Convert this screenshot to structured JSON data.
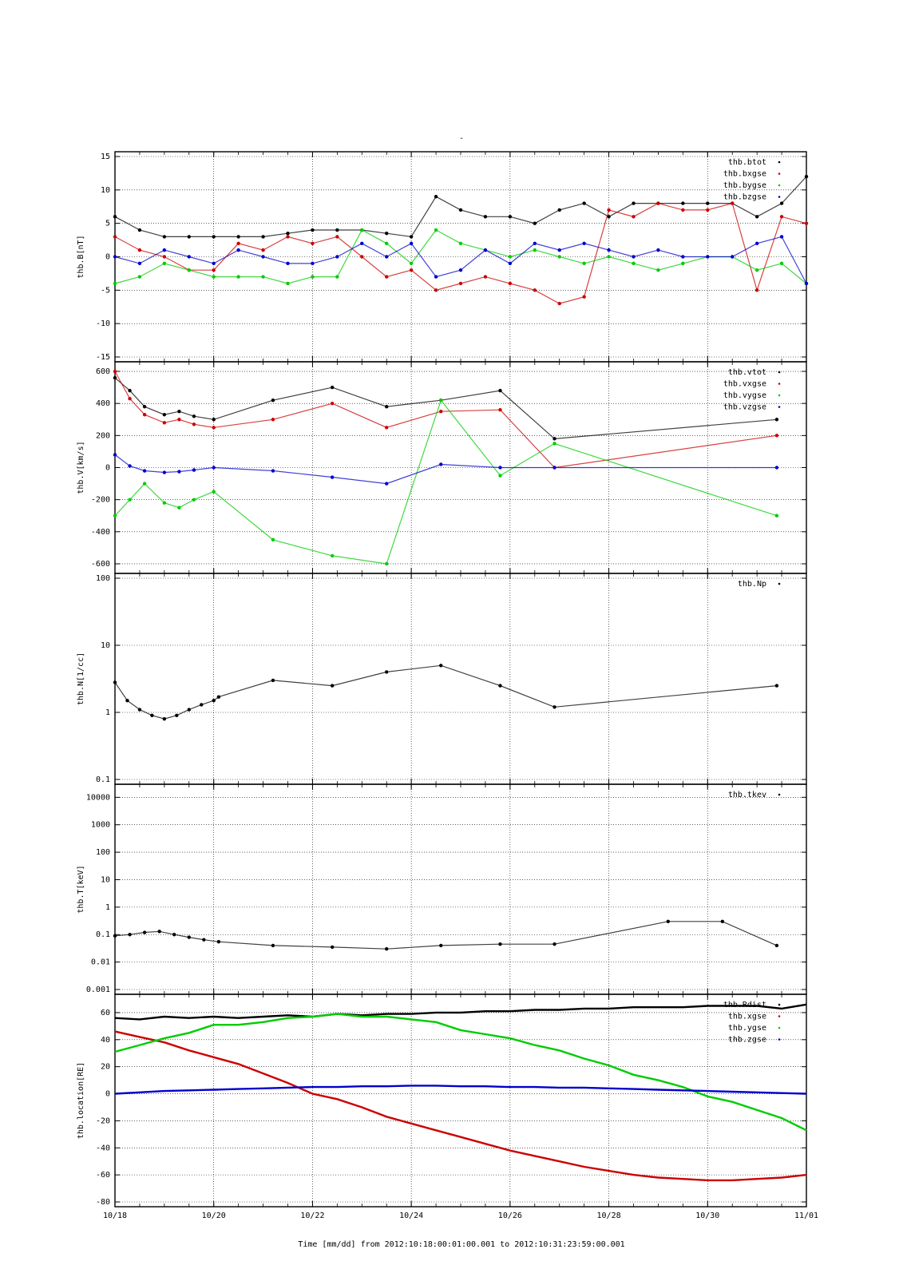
{
  "title": "-",
  "colors": {
    "black": "#000000",
    "red": "#cc0000",
    "green": "#00cc00",
    "blue": "#0000cc",
    "grid": "#000000"
  },
  "xaxis": {
    "ticks": [
      "10/18",
      "10/20",
      "10/22",
      "10/24",
      "10/26",
      "10/28",
      "10/30",
      "11/01"
    ],
    "label": "Time [mm/dd]  from 2012:10:18:00:01:00.001  to  2012:10:31:23:59:00.001",
    "range_days": [
      18,
      32
    ]
  },
  "chart_data": [
    {
      "type": "scatter",
      "ylabel": "thb.B[nT]",
      "scale": "linear",
      "ylim": [
        -15,
        15
      ],
      "yticks": [
        "15",
        "10",
        "5",
        "0",
        "-5",
        "-10",
        "-15"
      ],
      "legend": [
        "thb.btot",
        "thb.bxgse",
        "thb.bygse",
        "thb.bzgse"
      ],
      "series": [
        {
          "name": "thb.btot",
          "color": "black",
          "x": [
            18,
            18.5,
            19,
            19.5,
            20,
            20.5,
            21,
            21.5,
            22,
            22.5,
            23,
            23.5,
            24,
            24.5,
            25,
            25.5,
            26,
            26.5,
            27,
            27.5,
            28,
            28.5,
            29,
            29.5,
            30,
            30.5,
            31,
            31.5,
            32
          ],
          "y": [
            6,
            4,
            3,
            3,
            3,
            3,
            3,
            3.5,
            4,
            4,
            4,
            3.5,
            3,
            9,
            7,
            6,
            6,
            5,
            7,
            8,
            6,
            8,
            8,
            8,
            8,
            8,
            6,
            8,
            12
          ]
        },
        {
          "name": "thb.bxgse",
          "color": "red",
          "x": [
            18,
            18.5,
            19,
            19.5,
            20,
            20.5,
            21,
            21.5,
            22,
            22.5,
            23,
            23.5,
            24,
            24.5,
            25,
            25.5,
            26,
            26.5,
            27,
            27.5,
            28,
            28.5,
            29,
            29.5,
            30,
            30.5,
            31,
            31.5,
            32
          ],
          "y": [
            3,
            1,
            0,
            -2,
            -2,
            2,
            1,
            3,
            2,
            3,
            0,
            -3,
            -2,
            -5,
            -4,
            -3,
            -4,
            -5,
            -7,
            -6,
            7,
            6,
            8,
            7,
            7,
            8,
            -5,
            6,
            5
          ]
        },
        {
          "name": "thb.bygse",
          "color": "green",
          "x": [
            18,
            18.5,
            19,
            19.5,
            20,
            20.5,
            21,
            21.5,
            22,
            22.5,
            23,
            23.5,
            24,
            24.5,
            25,
            25.5,
            26,
            26.5,
            27,
            27.5,
            28,
            28.5,
            29,
            29.5,
            30,
            30.5,
            31,
            31.5,
            32
          ],
          "y": [
            -4,
            -3,
            -1,
            -2,
            -3,
            -3,
            -3,
            -4,
            -3,
            -3,
            4,
            2,
            -1,
            4,
            2,
            1,
            0,
            1,
            0,
            -1,
            0,
            -1,
            -2,
            -1,
            0,
            0,
            -2,
            -1,
            -4
          ]
        },
        {
          "name": "thb.bzgse",
          "color": "blue",
          "x": [
            18,
            18.5,
            19,
            19.5,
            20,
            20.5,
            21,
            21.5,
            22,
            22.5,
            23,
            23.5,
            24,
            24.5,
            25,
            25.5,
            26,
            26.5,
            27,
            27.5,
            28,
            28.5,
            29,
            29.5,
            30,
            30.5,
            31,
            31.5,
            32
          ],
          "y": [
            0,
            -1,
            1,
            0,
            -1,
            1,
            0,
            -1,
            -1,
            0,
            2,
            0,
            2,
            -3,
            -2,
            1,
            -1,
            2,
            1,
            2,
            1,
            0,
            1,
            0,
            0,
            0,
            2,
            3,
            -4
          ]
        }
      ]
    },
    {
      "type": "scatter",
      "ylabel": "thb.V[km/s]",
      "scale": "linear",
      "ylim": [
        -630,
        630
      ],
      "yticks": [
        "600",
        "400",
        "200",
        "0",
        "-200",
        "-400",
        "-600"
      ],
      "legend": [
        "thb.vtot",
        "thb.vxgse",
        "thb.vygse",
        "thb.vzgse"
      ],
      "series": [
        {
          "name": "thb.vtot",
          "color": "black",
          "x": [
            18,
            18.3,
            18.6,
            19,
            19.3,
            19.6,
            20,
            21.2,
            22.4,
            23.5,
            24.6,
            25.8,
            26.9,
            31.4
          ],
          "y": [
            560,
            480,
            380,
            330,
            350,
            320,
            300,
            420,
            500,
            380,
            420,
            480,
            180,
            300
          ]
        },
        {
          "name": "thb.vxgse",
          "color": "red",
          "x": [
            18,
            18.3,
            18.6,
            19,
            19.3,
            19.6,
            20,
            21.2,
            22.4,
            23.5,
            24.6,
            25.8,
            26.9,
            31.4
          ],
          "y": [
            600,
            430,
            330,
            280,
            300,
            270,
            250,
            300,
            400,
            250,
            350,
            360,
            0,
            200
          ]
        },
        {
          "name": "thb.vygse",
          "color": "green",
          "x": [
            18,
            18.3,
            18.6,
            19,
            19.3,
            19.6,
            20,
            21.2,
            22.4,
            23.5,
            24.6,
            25.8,
            26.9,
            31.4
          ],
          "y": [
            -300,
            -200,
            -100,
            -220,
            -250,
            -200,
            -150,
            -450,
            -550,
            -600,
            420,
            -50,
            150,
            -300
          ]
        },
        {
          "name": "thb.vzgse",
          "color": "blue",
          "x": [
            18,
            18.3,
            18.6,
            19,
            19.3,
            19.6,
            20,
            21.2,
            22.4,
            23.5,
            24.6,
            25.8,
            26.9,
            31.4
          ],
          "y": [
            80,
            10,
            -20,
            -30,
            -25,
            -15,
            0,
            -20,
            -60,
            -100,
            20,
            0,
            0,
            0
          ]
        }
      ]
    },
    {
      "type": "scatter",
      "ylabel": "thb.N[1/cc]",
      "scale": "log",
      "ylim": [
        0.1,
        100
      ],
      "yticks": [
        "100",
        "10",
        "1",
        "0.1"
      ],
      "legend": [
        "thb.Np"
      ],
      "series": [
        {
          "name": "thb.Np",
          "color": "black",
          "x": [
            18,
            18.25,
            18.5,
            18.75,
            19,
            19.25,
            19.5,
            19.75,
            20,
            20.1,
            21.2,
            22.4,
            23.5,
            24.6,
            25.8,
            26.9,
            31.4
          ],
          "y": [
            2.8,
            1.5,
            1.1,
            0.9,
            0.8,
            0.9,
            1.1,
            1.3,
            1.5,
            1.7,
            3,
            2.5,
            4,
            5,
            2.5,
            1.2,
            2.5
          ]
        }
      ]
    },
    {
      "type": "scatter",
      "ylabel": "thb.T[keV]",
      "scale": "log",
      "ylim": [
        0.001,
        20000
      ],
      "yticks": [
        "10000",
        "1000",
        "100",
        "10",
        "1",
        "0.1",
        "0.01",
        "0.001"
      ],
      "legend": [
        "thb.tkev"
      ],
      "series": [
        {
          "name": "thb.tkev",
          "color": "black",
          "x": [
            18,
            18.3,
            18.6,
            18.9,
            19.2,
            19.5,
            19.8,
            20.1,
            21.2,
            22.4,
            23.5,
            24.6,
            25.8,
            26.9,
            29.2,
            30.3,
            31.4
          ],
          "y": [
            0.09,
            0.1,
            0.12,
            0.13,
            0.1,
            0.08,
            0.065,
            0.055,
            0.04,
            0.035,
            0.03,
            0.04,
            0.045,
            0.045,
            0.3,
            0.3,
            0.04
          ]
        }
      ]
    },
    {
      "type": "line",
      "ylabel": "thb.location[RE]",
      "scale": "linear",
      "ylim": [
        -80,
        70
      ],
      "yticks": [
        "60",
        "40",
        "20",
        "0",
        "-20",
        "-40",
        "-60",
        "-80"
      ],
      "legend": [
        "thb.Rdist",
        "thb.xgse",
        "thb.ygse",
        "thb.zgse"
      ],
      "series": [
        {
          "name": "thb.Rdist",
          "color": "black",
          "x": [
            18,
            18.5,
            19,
            19.5,
            20,
            20.5,
            21,
            21.5,
            22,
            22.5,
            23,
            23.5,
            24,
            24.5,
            25,
            25.5,
            26,
            26.5,
            27,
            27.5,
            28,
            28.5,
            29,
            29.5,
            30,
            30.5,
            31,
            31.5,
            32
          ],
          "y": [
            56,
            55,
            57,
            56,
            57,
            56,
            57,
            58,
            57,
            59,
            58,
            59,
            59,
            60,
            60,
            61,
            61,
            62,
            62,
            63,
            63,
            64,
            64,
            64,
            65,
            65,
            65,
            63,
            66
          ]
        },
        {
          "name": "thb.xgse",
          "color": "red",
          "x": [
            18,
            18.5,
            19,
            19.5,
            20,
            20.5,
            21,
            21.5,
            22,
            22.5,
            23,
            23.5,
            24,
            24.5,
            25,
            25.5,
            26,
            26.5,
            27,
            27.5,
            28,
            28.5,
            29,
            29.5,
            30,
            30.5,
            31,
            31.5,
            32
          ],
          "y": [
            46,
            42,
            38,
            32,
            27,
            22,
            15,
            8,
            0,
            -4,
            -10,
            -17,
            -22,
            -27,
            -32,
            -37,
            -42,
            -46,
            -50,
            -54,
            -57,
            -60,
            -62,
            -63,
            -64,
            -64,
            -63,
            -62,
            -60
          ]
        },
        {
          "name": "thb.ygse",
          "color": "green",
          "x": [
            18,
            18.5,
            19,
            19.5,
            20,
            20.5,
            21,
            21.5,
            22,
            22.5,
            23,
            23.5,
            24,
            24.5,
            25,
            25.5,
            26,
            26.5,
            27,
            27.5,
            28,
            28.5,
            29,
            29.5,
            30,
            30.5,
            31,
            31.5,
            32
          ],
          "y": [
            31,
            36,
            41,
            45,
            51,
            51,
            53,
            56,
            57,
            59,
            57,
            57,
            55,
            53,
            47,
            44,
            41,
            36,
            32,
            26,
            21,
            14,
            10,
            5,
            -2,
            -6,
            -12,
            -18,
            -27
          ]
        },
        {
          "name": "thb.zgse",
          "color": "blue",
          "x": [
            18,
            18.5,
            19,
            19.5,
            20,
            20.5,
            21,
            21.5,
            22,
            22.5,
            23,
            23.5,
            24,
            24.5,
            25,
            25.5,
            26,
            26.5,
            27,
            27.5,
            28,
            28.5,
            29,
            29.5,
            30,
            30.5,
            31,
            31.5,
            32
          ],
          "y": [
            0,
            1,
            2,
            2.5,
            3,
            3.5,
            4,
            4.5,
            5,
            5,
            5.5,
            5.5,
            6,
            6,
            5.5,
            5.5,
            5,
            5,
            4.5,
            4.5,
            4,
            3.5,
            3,
            2.5,
            2,
            1.5,
            1,
            0.5,
            0
          ]
        }
      ]
    }
  ]
}
